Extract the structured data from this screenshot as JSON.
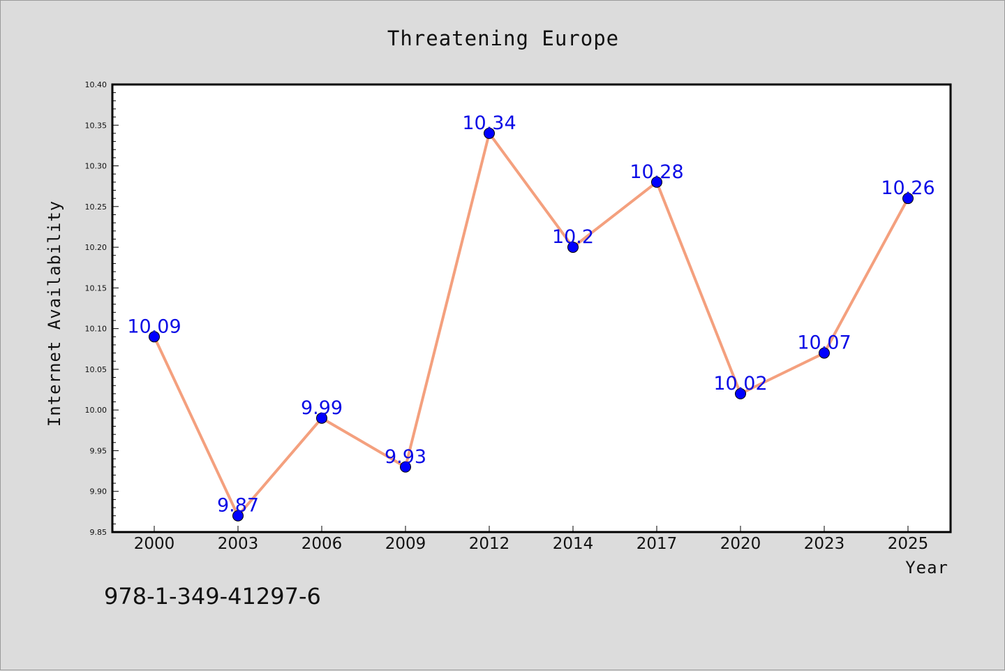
{
  "chart_data": {
    "type": "line",
    "title": "Threatening Europe",
    "xlabel": "Year",
    "ylabel": "Internet Availability",
    "categories": [
      "2000",
      "2003",
      "2006",
      "2009",
      "2012",
      "2014",
      "2017",
      "2020",
      "2023",
      "2025"
    ],
    "series": [
      {
        "values": [
          10.09,
          9.87,
          9.99,
          9.93,
          10.34,
          10.2,
          10.28,
          10.02,
          10.07,
          10.26
        ]
      }
    ],
    "data_labels": [
      "10.09",
      "9.87",
      "9.99",
      "9.93",
      "10.34",
      "10.2",
      "10.28",
      "10.02",
      "10.07",
      "10.26"
    ],
    "ylim": [
      9.85,
      10.4
    ],
    "yticks": [
      "9.85",
      "9.90",
      "9.95",
      "10.00",
      "10.05",
      "10.10",
      "10.15",
      "10.20",
      "10.25",
      "10.30",
      "10.35",
      "10.40"
    ],
    "grid": false,
    "legend": "none",
    "colors": {
      "line": "#f4a07e",
      "marker": "#0000ff",
      "label": "#0a0ae6"
    }
  },
  "footer": {
    "isbn": "978-1-349-41297-6"
  }
}
